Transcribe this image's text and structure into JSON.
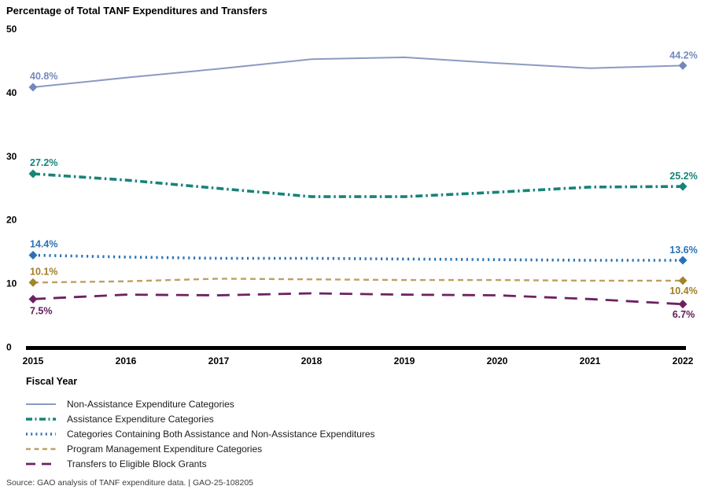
{
  "title": "Percentage of Total TANF Expenditures and Transfers",
  "xlabel": "Fiscal Year",
  "source": "Source: GAO analysis of TANF expenditure data.  |  GAO-25-108205",
  "chart_data": {
    "type": "line",
    "x": [
      2015,
      2016,
      2017,
      2018,
      2019,
      2020,
      2021,
      2022
    ],
    "x_tick_labels": [
      "2015",
      "2016",
      "2017",
      "2018",
      "2019",
      "2020",
      "2021",
      "2022"
    ],
    "ylim": [
      0,
      50
    ],
    "yticks": [
      0,
      10,
      20,
      30,
      40,
      50
    ],
    "grid": false,
    "legend_position": "below",
    "series": [
      {
        "name": "Non-Assistance Expenditure Categories",
        "line_style": "solid",
        "color": "#8b9ac1",
        "label_color": "#7488bd",
        "marker_color": "#7488bd",
        "values": [
          40.8,
          42.3,
          43.7,
          45.2,
          45.5,
          44.6,
          43.8,
          44.2
        ],
        "start_label": "40.8%",
        "end_label": "44.2%"
      },
      {
        "name": "Assistance Expenditure Categories",
        "line_style": "dashdot",
        "color": "#178379",
        "label_color": "#178379",
        "marker_color": "#178379",
        "values": [
          27.2,
          26.2,
          24.9,
          23.6,
          23.6,
          24.3,
          25.1,
          25.2
        ],
        "start_label": "27.2%",
        "end_label": "25.2%"
      },
      {
        "name": "Categories Containing Both Assistance and Non-Assistance Expenditures",
        "line_style": "dotted",
        "color": "#2a72b5",
        "label_color": "#2a72b5",
        "marker_color": "#2a72b5",
        "values": [
          14.4,
          14.1,
          13.9,
          13.9,
          13.8,
          13.7,
          13.6,
          13.6
        ],
        "start_label": "14.4%",
        "end_label": "13.6%"
      },
      {
        "name": "Program Management Expenditure Categories",
        "line_style": "dashed",
        "color": "#bf9f63",
        "label_color": "#a07e28",
        "marker_color": "#a3842e",
        "values": [
          10.1,
          10.3,
          10.7,
          10.6,
          10.5,
          10.5,
          10.4,
          10.4
        ],
        "start_label": "10.1%",
        "end_label": "10.4%"
      },
      {
        "name": "Transfers to Eligible Block Grants",
        "line_style": "longdash",
        "color": "#6d2163",
        "label_color": "#5f1b59",
        "marker_color": "#6d2163",
        "values": [
          7.5,
          8.2,
          8.1,
          8.4,
          8.2,
          8.1,
          7.5,
          6.7
        ],
        "start_label": "7.5%",
        "end_label": "6.7%"
      }
    ]
  }
}
